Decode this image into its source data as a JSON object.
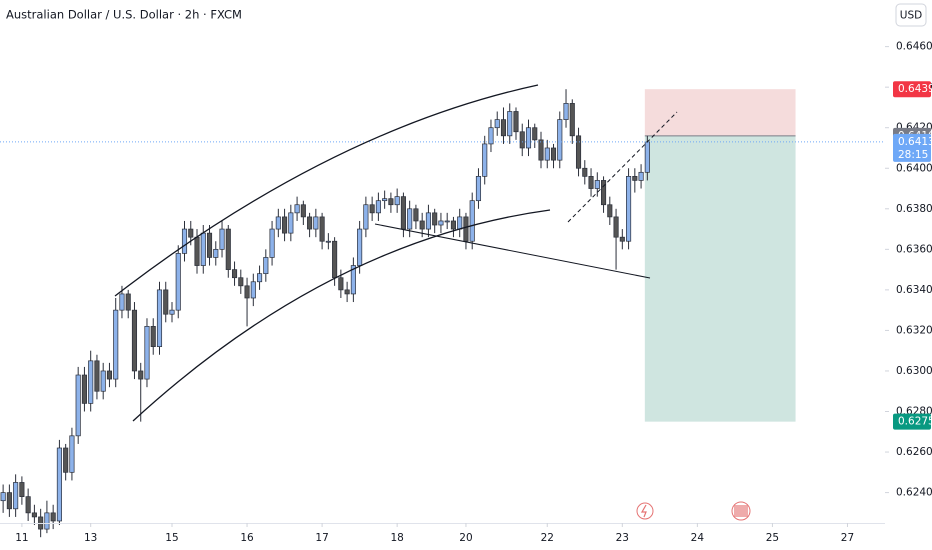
{
  "chart_data": {
    "type": "candlestick",
    "title": "Australian Dollar / U.S. Dollar · 2h · FXCM",
    "currency": "USD",
    "up_color": "#8db2ea",
    "down_color": "#555555",
    "ylim": [
      0.6225,
      0.6483
    ],
    "yticks": [
      {
        "value": 0.646,
        "label": "0.6460"
      },
      {
        "value": 0.644,
        "label": "0.6440"
      },
      {
        "value": 0.642,
        "label": "0.6420"
      },
      {
        "value": 0.64,
        "label": "0.6400"
      },
      {
        "value": 0.638,
        "label": "0.6380"
      },
      {
        "value": 0.636,
        "label": "0.6360"
      },
      {
        "value": 0.634,
        "label": "0.6340"
      },
      {
        "value": 0.632,
        "label": "0.6320"
      },
      {
        "value": 0.63,
        "label": "0.6300"
      },
      {
        "value": 0.628,
        "label": "0.6280"
      },
      {
        "value": 0.626,
        "label": "0.6260"
      },
      {
        "value": 0.624,
        "label": "0.6240"
      }
    ],
    "xlim": [
      -0.5,
      141
    ],
    "xticks": [
      {
        "value": 3,
        "label": "11"
      },
      {
        "value": 14,
        "label": "13"
      },
      {
        "value": 27,
        "label": "15"
      },
      {
        "value": 39,
        "label": "16"
      },
      {
        "value": 51,
        "label": "17"
      },
      {
        "value": 63,
        "label": "18"
      },
      {
        "value": 74,
        "label": "20"
      },
      {
        "value": 87,
        "label": "22"
      },
      {
        "value": 99,
        "label": "23"
      },
      {
        "value": 111,
        "label": "24"
      },
      {
        "value": 123,
        "label": "25"
      },
      {
        "value": 135,
        "label": "27"
      }
    ],
    "ohlc": [
      [
        0.6236,
        0.6244,
        0.623,
        0.624
      ],
      [
        0.624,
        0.6244,
        0.6228,
        0.6232
      ],
      [
        0.6232,
        0.6249,
        0.6228,
        0.6245
      ],
      [
        0.6245,
        0.6248,
        0.6234,
        0.6238
      ],
      [
        0.6238,
        0.6242,
        0.6226,
        0.623
      ],
      [
        0.623,
        0.6234,
        0.6224,
        0.6228
      ],
      [
        0.6228,
        0.6232,
        0.6218,
        0.6222
      ],
      [
        0.6222,
        0.6236,
        0.622,
        0.623
      ],
      [
        0.623,
        0.6234,
        0.6222,
        0.6226
      ],
      [
        0.6226,
        0.6266,
        0.6224,
        0.6262
      ],
      [
        0.6262,
        0.6264,
        0.6246,
        0.625
      ],
      [
        0.625,
        0.6272,
        0.6246,
        0.6268
      ],
      [
        0.6268,
        0.6302,
        0.6264,
        0.6298
      ],
      [
        0.6298,
        0.6302,
        0.628,
        0.6284
      ],
      [
        0.6284,
        0.631,
        0.628,
        0.6305
      ],
      [
        0.6305,
        0.6308,
        0.6286,
        0.629
      ],
      [
        0.629,
        0.6304,
        0.6286,
        0.63
      ],
      [
        0.63,
        0.6304,
        0.6292,
        0.6296
      ],
      [
        0.6296,
        0.6336,
        0.6292,
        0.633
      ],
      [
        0.633,
        0.6342,
        0.6326,
        0.6338
      ],
      [
        0.6338,
        0.634,
        0.6326,
        0.633
      ],
      [
        0.633,
        0.6334,
        0.6296,
        0.63
      ],
      [
        0.63,
        0.6304,
        0.6275,
        0.6296
      ],
      [
        0.6296,
        0.6326,
        0.6292,
        0.6322
      ],
      [
        0.6322,
        0.6326,
        0.6308,
        0.6312
      ],
      [
        0.6312,
        0.6344,
        0.6308,
        0.634
      ],
      [
        0.634,
        0.6344,
        0.6324,
        0.6328
      ],
      [
        0.6328,
        0.6334,
        0.6324,
        0.633
      ],
      [
        0.633,
        0.6362,
        0.6326,
        0.6358
      ],
      [
        0.6358,
        0.6374,
        0.6354,
        0.637
      ],
      [
        0.637,
        0.6374,
        0.6362,
        0.6366
      ],
      [
        0.6366,
        0.637,
        0.6348,
        0.6352
      ],
      [
        0.6352,
        0.6372,
        0.6348,
        0.6368
      ],
      [
        0.6368,
        0.6372,
        0.6352,
        0.6356
      ],
      [
        0.6356,
        0.6364,
        0.6352,
        0.636
      ],
      [
        0.636,
        0.6374,
        0.6356,
        0.637
      ],
      [
        0.637,
        0.6372,
        0.6346,
        0.635
      ],
      [
        0.635,
        0.6354,
        0.6342,
        0.6346
      ],
      [
        0.6346,
        0.635,
        0.6338,
        0.6342
      ],
      [
        0.6342,
        0.6346,
        0.6322,
        0.6336
      ],
      [
        0.6336,
        0.6348,
        0.6332,
        0.6344
      ],
      [
        0.6344,
        0.6352,
        0.634,
        0.6348
      ],
      [
        0.6348,
        0.636,
        0.6344,
        0.6356
      ],
      [
        0.6356,
        0.6374,
        0.6352,
        0.637
      ],
      [
        0.637,
        0.638,
        0.6366,
        0.6376
      ],
      [
        0.6376,
        0.638,
        0.6364,
        0.6368
      ],
      [
        0.6368,
        0.6382,
        0.6364,
        0.6378
      ],
      [
        0.6378,
        0.6386,
        0.6374,
        0.6382
      ],
      [
        0.6382,
        0.6384,
        0.6372,
        0.6376
      ],
      [
        0.6376,
        0.6378,
        0.6366,
        0.637
      ],
      [
        0.637,
        0.638,
        0.6366,
        0.6376
      ],
      [
        0.6376,
        0.6378,
        0.636,
        0.6364
      ],
      [
        0.6364,
        0.6368,
        0.636,
        0.6364
      ],
      [
        0.6364,
        0.6366,
        0.6342,
        0.6346
      ],
      [
        0.6346,
        0.635,
        0.6336,
        0.634
      ],
      [
        0.634,
        0.6344,
        0.6334,
        0.6338
      ],
      [
        0.6338,
        0.6356,
        0.6334,
        0.6352
      ],
      [
        0.6352,
        0.6374,
        0.6348,
        0.637
      ],
      [
        0.637,
        0.6386,
        0.6366,
        0.6382
      ],
      [
        0.6382,
        0.6386,
        0.6374,
        0.6378
      ],
      [
        0.6378,
        0.6388,
        0.6374,
        0.6384
      ],
      [
        0.6384,
        0.6389,
        0.638,
        0.6385
      ],
      [
        0.6385,
        0.6388,
        0.6378,
        0.6382
      ],
      [
        0.6382,
        0.639,
        0.6378,
        0.6386
      ],
      [
        0.6386,
        0.6388,
        0.6366,
        0.637
      ],
      [
        0.637,
        0.6384,
        0.6366,
        0.638
      ],
      [
        0.638,
        0.6382,
        0.637,
        0.6374
      ],
      [
        0.6374,
        0.6378,
        0.6366,
        0.637
      ],
      [
        0.637,
        0.6382,
        0.6366,
        0.6378
      ],
      [
        0.6378,
        0.638,
        0.6368,
        0.6372
      ],
      [
        0.6372,
        0.6378,
        0.6368,
        0.6374
      ],
      [
        0.6374,
        0.6378,
        0.637,
        0.6374
      ],
      [
        0.6374,
        0.6376,
        0.6366,
        0.637
      ],
      [
        0.637,
        0.638,
        0.6366,
        0.6376
      ],
      [
        0.6376,
        0.6378,
        0.636,
        0.6364
      ],
      [
        0.6364,
        0.6388,
        0.636,
        0.6384
      ],
      [
        0.6384,
        0.64,
        0.638,
        0.6396
      ],
      [
        0.6396,
        0.6416,
        0.6392,
        0.6412
      ],
      [
        0.6412,
        0.6424,
        0.6408,
        0.642
      ],
      [
        0.642,
        0.6428,
        0.6416,
        0.6424
      ],
      [
        0.6424,
        0.643,
        0.6412,
        0.6416
      ],
      [
        0.6416,
        0.6432,
        0.6412,
        0.6428
      ],
      [
        0.6428,
        0.643,
        0.6414,
        0.6418
      ],
      [
        0.6418,
        0.6422,
        0.6406,
        0.641
      ],
      [
        0.641,
        0.6424,
        0.6406,
        0.642
      ],
      [
        0.642,
        0.6422,
        0.641,
        0.6414
      ],
      [
        0.6414,
        0.6418,
        0.64,
        0.6404
      ],
      [
        0.6404,
        0.6414,
        0.64,
        0.641
      ],
      [
        0.641,
        0.6412,
        0.64,
        0.6404
      ],
      [
        0.6404,
        0.6428,
        0.64,
        0.6424
      ],
      [
        0.6424,
        0.6439,
        0.642,
        0.6432
      ],
      [
        0.6432,
        0.6434,
        0.6412,
        0.6416
      ],
      [
        0.6416,
        0.642,
        0.6396,
        0.64
      ],
      [
        0.64,
        0.6404,
        0.6392,
        0.6396
      ],
      [
        0.6396,
        0.64,
        0.6386,
        0.639
      ],
      [
        0.639,
        0.6398,
        0.6386,
        0.6394
      ],
      [
        0.6394,
        0.6396,
        0.6378,
        0.6382
      ],
      [
        0.6382,
        0.6386,
        0.6372,
        0.6376
      ],
      [
        0.6376,
        0.638,
        0.635,
        0.6366
      ],
      [
        0.6366,
        0.637,
        0.636,
        0.6364
      ],
      [
        0.6364,
        0.64,
        0.636,
        0.6396
      ],
      [
        0.6396,
        0.64,
        0.6388,
        0.6394
      ],
      [
        0.6394,
        0.6402,
        0.639,
        0.6398
      ],
      [
        0.6398,
        0.6416,
        0.6394,
        0.6413
      ]
    ],
    "position": {
      "start": 102.6,
      "end": 126.7,
      "entry": 0.6416,
      "stop": 0.6439,
      "target": 0.6275,
      "stop_color": "#f5dcdc",
      "target_color": "#cfe5e0"
    },
    "price_labels": [
      {
        "value": 0.6439,
        "label": "0.6439",
        "color": "#f23645"
      },
      {
        "value": 0.6416,
        "label": "0.6416",
        "color": "#787b86"
      },
      {
        "value": 0.6413,
        "label": "0.6413",
        "color": "#6ea8f7",
        "countdown": "28:15"
      },
      {
        "value": 0.6275,
        "label": "0.6275",
        "color": "#089981"
      }
    ]
  }
}
